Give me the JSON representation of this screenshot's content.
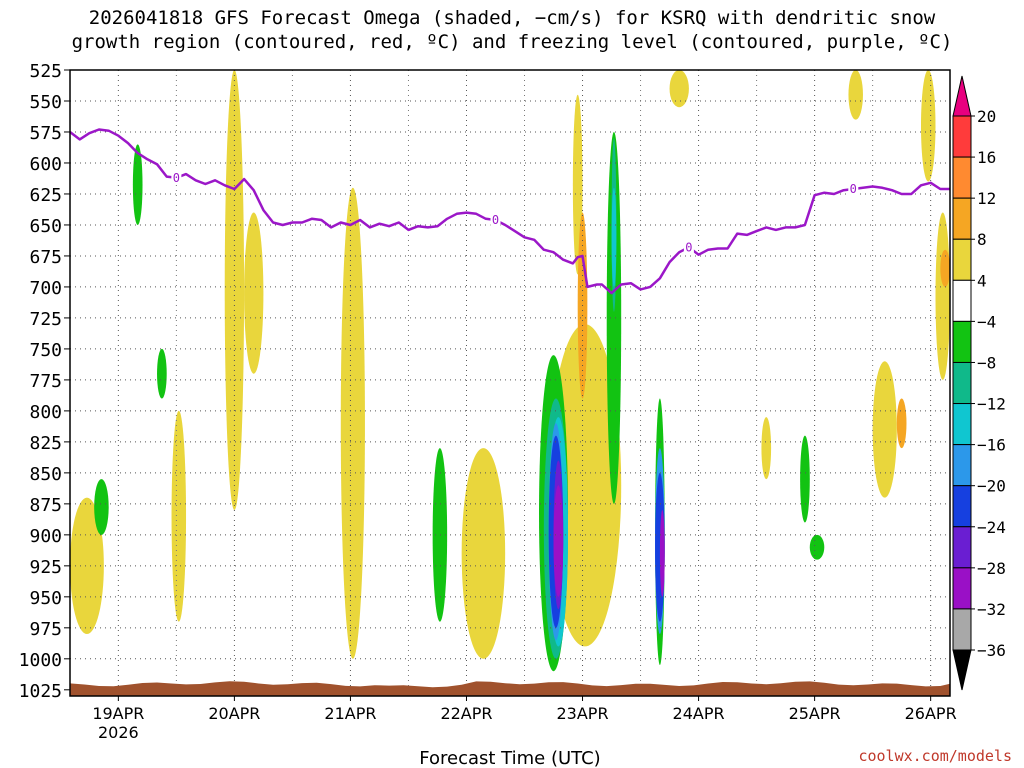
{
  "title_line1": "2026041818 GFS Forecast Omega (shaded, −cm/s) for KSRQ with dendritic snow",
  "title_line2": "growth region (contoured, red, ºC) and freezing level (contoured, purple, ºC)",
  "watermark": "coolwx.com/models",
  "chart_data": {
    "type": "heatmap",
    "title": "2026041818 GFS Forecast Omega (shaded, −cm/s) for KSRQ with dendritic snow growth region (contoured, red, ºC) and freezing level (contoured, purple, ºC)",
    "xlabel": "Forecast Time (UTC)",
    "ylabel": "",
    "x_range_hours": [
      -4,
      178
    ],
    "y_range_hpa": [
      525,
      1030
    ],
    "x_ticks": [
      {
        "label": "19APR",
        "hour": 6,
        "sub": "2026"
      },
      {
        "label": "20APR",
        "hour": 30
      },
      {
        "label": "21APR",
        "hour": 54
      },
      {
        "label": "22APR",
        "hour": 78
      },
      {
        "label": "23APR",
        "hour": 102
      },
      {
        "label": "24APR",
        "hour": 126
      },
      {
        "label": "25APR",
        "hour": 150
      },
      {
        "label": "26APR",
        "hour": 174
      }
    ],
    "y_ticks": [
      525,
      550,
      575,
      600,
      625,
      650,
      675,
      700,
      725,
      750,
      775,
      800,
      825,
      850,
      875,
      900,
      925,
      950,
      975,
      1000,
      1025
    ],
    "colorbar": {
      "labels": [
        20,
        16,
        12,
        8,
        4,
        -4,
        -8,
        -12,
        -16,
        -20,
        -24,
        -28,
        -32,
        -36
      ],
      "colors": [
        "#e8007f",
        "#ff3b3b",
        "#ff8a30",
        "#f5a623",
        "#e9d63c",
        "#ffffff",
        "#12c312",
        "#10b98a",
        "#10c6d0",
        "#2c98ea",
        "#1640e0",
        "#6a1ed2",
        "#9a10c6",
        "#a8a8a8",
        "#000000"
      ]
    },
    "freezing_level_label": "0",
    "freezing_level": [
      [
        -4,
        575
      ],
      [
        -2,
        581
      ],
      [
        0,
        576
      ],
      [
        2,
        573
      ],
      [
        4,
        574
      ],
      [
        6,
        578
      ],
      [
        8,
        584
      ],
      [
        10,
        592
      ],
      [
        12,
        597
      ],
      [
        14,
        601
      ],
      [
        16,
        611
      ],
      [
        18,
        612
      ],
      [
        20,
        609
      ],
      [
        22,
        614
      ],
      [
        24,
        617
      ],
      [
        26,
        614
      ],
      [
        28,
        618
      ],
      [
        30,
        621
      ],
      [
        32,
        613
      ],
      [
        34,
        622
      ],
      [
        36,
        638
      ],
      [
        38,
        648
      ],
      [
        40,
        650
      ],
      [
        42,
        648
      ],
      [
        44,
        648
      ],
      [
        46,
        645
      ],
      [
        48,
        646
      ],
      [
        50,
        652
      ],
      [
        52,
        648
      ],
      [
        54,
        650
      ],
      [
        56,
        646
      ],
      [
        58,
        652
      ],
      [
        60,
        649
      ],
      [
        62,
        651
      ],
      [
        64,
        648
      ],
      [
        66,
        654
      ],
      [
        68,
        651
      ],
      [
        70,
        652
      ],
      [
        72,
        651
      ],
      [
        74,
        645
      ],
      [
        76,
        641
      ],
      [
        78,
        640
      ],
      [
        80,
        641
      ],
      [
        82,
        645
      ],
      [
        84,
        646
      ],
      [
        86,
        650
      ],
      [
        88,
        655
      ],
      [
        90,
        660
      ],
      [
        92,
        662
      ],
      [
        94,
        670
      ],
      [
        96,
        672
      ],
      [
        98,
        678
      ],
      [
        100,
        681
      ],
      [
        101,
        676
      ],
      [
        102,
        675
      ],
      [
        103,
        700
      ],
      [
        105,
        698
      ],
      [
        106,
        698
      ],
      [
        108,
        705
      ],
      [
        110,
        698
      ],
      [
        112,
        697
      ],
      [
        114,
        702
      ],
      [
        116,
        700
      ],
      [
        118,
        693
      ],
      [
        120,
        680
      ],
      [
        122,
        672
      ],
      [
        124,
        668
      ],
      [
        126,
        674
      ],
      [
        128,
        670
      ],
      [
        130,
        669
      ],
      [
        132,
        669
      ],
      [
        134,
        657
      ],
      [
        136,
        658
      ],
      [
        138,
        655
      ],
      [
        140,
        652
      ],
      [
        142,
        654
      ],
      [
        144,
        652
      ],
      [
        146,
        652
      ],
      [
        148,
        650
      ],
      [
        150,
        626
      ],
      [
        152,
        624
      ],
      [
        154,
        625
      ],
      [
        156,
        622
      ],
      [
        158,
        621
      ],
      [
        160,
        620
      ],
      [
        162,
        619
      ],
      [
        164,
        620
      ],
      [
        166,
        622
      ],
      [
        168,
        625
      ],
      [
        170,
        625
      ],
      [
        172,
        618
      ],
      [
        174,
        616
      ],
      [
        176,
        621
      ],
      [
        178,
        621
      ]
    ],
    "omega_regions": [
      {
        "level": 4,
        "x": [
          100,
          102
        ],
        "y": [
          545,
          690
        ]
      },
      {
        "level": 4,
        "x": [
          95,
          110
        ],
        "y": [
          730,
          990
        ]
      },
      {
        "level": 4,
        "x": [
          -4,
          3
        ],
        "y": [
          870,
          980
        ]
      },
      {
        "level": 4,
        "x": [
          17,
          20
        ],
        "y": [
          800,
          970
        ]
      },
      {
        "level": 4,
        "x": [
          28,
          32
        ],
        "y": [
          525,
          880
        ]
      },
      {
        "level": 4,
        "x": [
          32,
          36
        ],
        "y": [
          640,
          770
        ]
      },
      {
        "level": 4,
        "x": [
          52,
          57
        ],
        "y": [
          620,
          1000
        ]
      },
      {
        "level": 4,
        "x": [
          77,
          86
        ],
        "y": [
          830,
          1000
        ]
      },
      {
        "level": 4,
        "x": [
          162,
          167
        ],
        "y": [
          760,
          870
        ]
      },
      {
        "level": 4,
        "x": [
          139,
          141
        ],
        "y": [
          805,
          855
        ]
      },
      {
        "level": 4,
        "x": [
          157,
          160
        ],
        "y": [
          525,
          565
        ]
      },
      {
        "level": 4,
        "x": [
          120,
          124
        ],
        "y": [
          525,
          555
        ]
      },
      {
        "level": 4,
        "x": [
          172,
          175
        ],
        "y": [
          525,
          615
        ]
      },
      {
        "level": 4,
        "x": [
          175,
          178
        ],
        "y": [
          640,
          775
        ]
      },
      {
        "level": 8,
        "x": [
          101,
          103
        ],
        "y": [
          640,
          790
        ]
      },
      {
        "level": 8,
        "x": [
          176,
          178
        ],
        "y": [
          670,
          700
        ]
      },
      {
        "level": 8,
        "x": [
          167,
          169
        ],
        "y": [
          790,
          830
        ]
      },
      {
        "level": -4,
        "x": [
          93,
          99
        ],
        "y": [
          755,
          1010
        ]
      },
      {
        "level": -4,
        "x": [
          107,
          110
        ],
        "y": [
          575,
          875
        ]
      },
      {
        "level": -4,
        "x": [
          117,
          119
        ],
        "y": [
          790,
          1005
        ]
      },
      {
        "level": -4,
        "x": [
          71,
          74
        ],
        "y": [
          830,
          970
        ]
      },
      {
        "level": -4,
        "x": [
          1,
          4
        ],
        "y": [
          855,
          900
        ]
      },
      {
        "level": -4,
        "x": [
          9,
          11
        ],
        "y": [
          585,
          650
        ]
      },
      {
        "level": -4,
        "x": [
          14,
          16
        ],
        "y": [
          750,
          790
        ]
      },
      {
        "level": -4,
        "x": [
          147,
          149
        ],
        "y": [
          820,
          890
        ]
      },
      {
        "level": -4,
        "x": [
          149,
          152
        ],
        "y": [
          900,
          920
        ]
      },
      {
        "level": -8,
        "x": [
          94,
          99
        ],
        "y": [
          790,
          1000
        ]
      },
      {
        "level": -8,
        "x": [
          108,
          109
        ],
        "y": [
          580,
          720
        ]
      },
      {
        "level": -12,
        "x": [
          95,
          99
        ],
        "y": [
          805,
          990
        ]
      },
      {
        "level": -12,
        "x": [
          108,
          109
        ],
        "y": [
          620,
          700
        ]
      },
      {
        "level": -16,
        "x": [
          95,
          98
        ],
        "y": [
          810,
          985
        ]
      },
      {
        "level": -16,
        "x": [
          117,
          119
        ],
        "y": [
          830,
          980
        ]
      },
      {
        "level": -20,
        "x": [
          95,
          98
        ],
        "y": [
          820,
          975
        ]
      },
      {
        "level": -20,
        "x": [
          117,
          119
        ],
        "y": [
          850,
          970
        ]
      },
      {
        "level": -24,
        "x": [
          96,
          98
        ],
        "y": [
          840,
          960
        ]
      },
      {
        "level": -28,
        "x": [
          96,
          98
        ],
        "y": [
          860,
          950
        ]
      },
      {
        "level": -28,
        "x": [
          118,
          119
        ],
        "y": [
          880,
          950
        ]
      }
    ],
    "terrain_top_hpa": 1025
  }
}
